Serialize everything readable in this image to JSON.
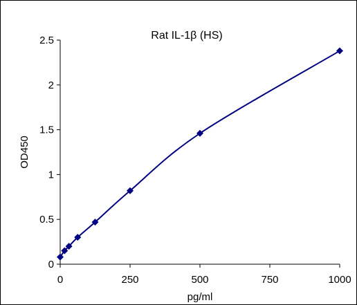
{
  "chart_data": {
    "type": "scatter",
    "title": "Rat IL-1β (HS)",
    "xlabel": "pg/ml",
    "ylabel": "OD450",
    "xlim": [
      0,
      1000
    ],
    "ylim": [
      0,
      2.5
    ],
    "x_ticks": [
      "0",
      "250",
      "500",
      "750",
      "1000"
    ],
    "y_ticks": [
      "0",
      "0.5",
      "1",
      "1.5",
      "2",
      "2.5"
    ],
    "grid": false,
    "legend": "none",
    "fit_line": "smooth curve through points",
    "series": [
      {
        "marker": "diamond",
        "color": "#000080",
        "x": [
          0,
          15.6,
          31.25,
          62.5,
          125,
          250,
          500,
          1000
        ],
        "y": [
          0.08,
          0.15,
          0.2,
          0.3,
          0.47,
          0.82,
          1.46,
          2.38
        ]
      }
    ]
  }
}
